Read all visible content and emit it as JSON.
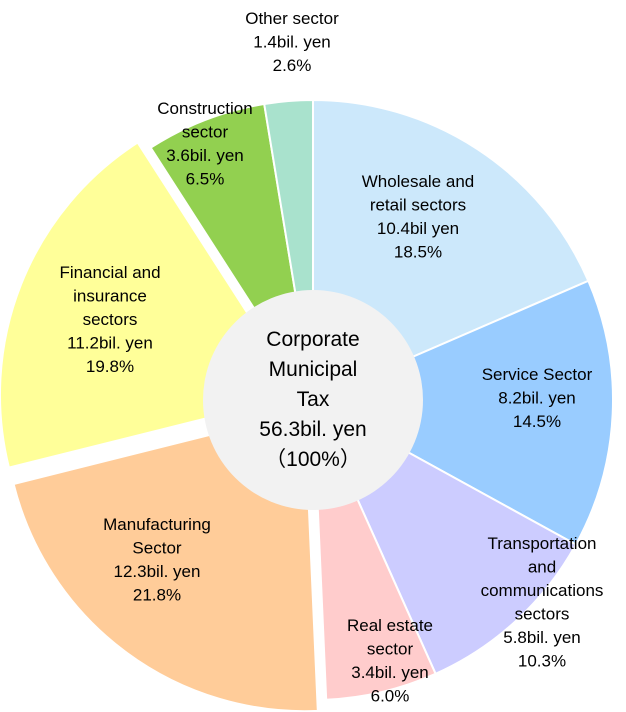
{
  "chart_data": {
    "type": "donut",
    "center_title": [
      "Corporate",
      "Municipal",
      "Tax"
    ],
    "total": 56.3,
    "total_label": "56.3bil. yen",
    "total_percent": 100,
    "total_percent_label": "（100%）",
    "categories": [
      [
        "Wholesale and",
        "retail sectors"
      ],
      [
        "Service Sector"
      ],
      [
        "Transportation",
        "and",
        "communications",
        "sectors"
      ],
      [
        "Real estate",
        "sector"
      ],
      [
        "Manufacturing",
        "Sector"
      ],
      [
        "Financial and",
        "insurance",
        "sectors"
      ],
      [
        "Construction",
        "sector"
      ],
      [
        "Other sector"
      ]
    ],
    "amounts": [
      10.4,
      8.2,
      5.8,
      3.4,
      12.3,
      11.2,
      3.6,
      1.4
    ],
    "amount_labels": [
      "10.4bil yen",
      "8.2bil. yen",
      "5.8bil. yen",
      "3.4bil. yen",
      "12.3bil. yen",
      "11.2bil. yen",
      "3.6bil. yen",
      "1.4bil. yen"
    ],
    "values": [
      18.5,
      14.5,
      10.3,
      6.0,
      21.8,
      19.8,
      6.5,
      2.6
    ],
    "value_labels": [
      "18.5%",
      "14.5%",
      "10.3%",
      "6.0%",
      "21.8%",
      "19.8%",
      "6.5%",
      "2.6%"
    ],
    "colors": [
      "#cce8fb",
      "#99ccff",
      "#ccccff",
      "#ffcccc",
      "#ffcc99",
      "#ffff99",
      "#92d050",
      "#a9e2cd"
    ],
    "exploded": [
      false,
      false,
      false,
      false,
      true,
      true,
      false,
      false
    ]
  }
}
